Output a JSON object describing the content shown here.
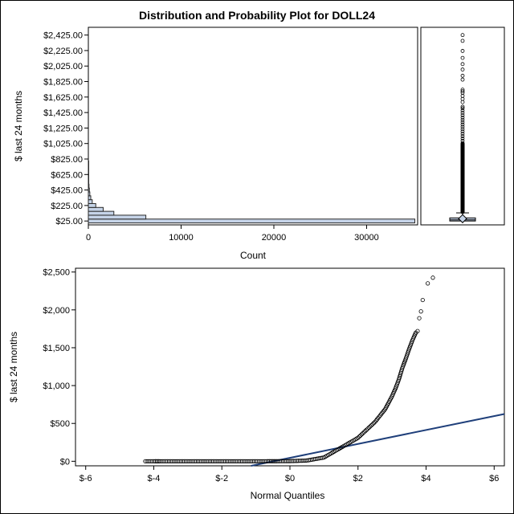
{
  "title": "Distribution and Probability Plot for DOLL24",
  "chart_data": [
    {
      "type": "bar",
      "orientation": "horizontal",
      "title": "Distribution and Probability Plot for DOLL24",
      "xlabel": "Count",
      "ylabel": "$ last 24 months",
      "xlim": [
        0,
        35500
      ],
      "ylim": [
        -25,
        2525
      ],
      "x_ticks": [
        0,
        10000,
        20000,
        30000
      ],
      "x_tick_labels": [
        "0",
        "10000",
        "20000",
        "30000"
      ],
      "y_tick_labels": [
        "$25.00",
        "$225.00",
        "$425.00",
        "$625.00",
        "$825.00",
        "$1,025.00",
        "$1,225.00",
        "$1,425.00",
        "$1,625.00",
        "$1,825.00",
        "$2,025.00",
        "$2,225.00",
        "$2,425.00"
      ],
      "y_ticks": [
        25,
        225,
        425,
        625,
        825,
        1025,
        1225,
        1425,
        1625,
        1825,
        2025,
        2225,
        2425
      ],
      "categories": [
        "$25.00",
        "$75.00",
        "$125.00",
        "$175.00",
        "$225.00",
        "$275.00",
        "$325.00",
        "$375.00",
        "$425.00",
        "$475.00",
        "$525.00",
        "$575.00",
        "$625.00",
        "$675.00",
        "$725.00",
        "$775.00"
      ],
      "bin_centers": [
        25,
        75,
        125,
        175,
        225,
        275,
        325,
        375,
        425,
        475,
        525,
        575,
        625,
        675,
        725,
        775
      ],
      "values": [
        35200,
        6200,
        2750,
        1600,
        800,
        420,
        260,
        160,
        110,
        70,
        45,
        30,
        20,
        14,
        9,
        6
      ],
      "bar_color": "#c6d4e8",
      "outline_color": "#2a2a2a",
      "grid": false
    },
    {
      "type": "boxplot",
      "ylim": [
        -25,
        2525
      ],
      "q1": 25,
      "median": 40,
      "q3": 65,
      "mean": 55,
      "whisker_low": 0,
      "whisker_high": 130,
      "outliers": [
        2425,
        2350,
        2220,
        2130,
        2050,
        1980,
        1900,
        1850,
        1720,
        1700,
        1680,
        1640,
        1600,
        1560,
        1500,
        1480,
        1450,
        1420,
        1390,
        1360,
        1330,
        1300,
        1270,
        1240,
        1210,
        1180,
        1150,
        1120,
        1090,
        1060,
        1030
      ],
      "outlier_dense_range": [
        140,
        1020
      ],
      "box_color": "#c6d4e8"
    },
    {
      "type": "scatter",
      "xlabel": "Normal Quantiles",
      "ylabel": "$ last 24 months",
      "xlim": [
        -6.3,
        6.3
      ],
      "ylim": [
        -60,
        2550
      ],
      "x_ticks": [
        -6,
        -4,
        -2,
        0,
        2,
        4,
        6
      ],
      "x_tick_labels": [
        "$-6",
        "$-4",
        "$-2",
        "$0",
        "$2",
        "$4",
        "$6"
      ],
      "y_ticks": [
        0,
        500,
        1000,
        1500,
        2000,
        2500
      ],
      "y_tick_labels": [
        "$0",
        "$500",
        "$1,000",
        "$1,500",
        "$2,000",
        "$2,500"
      ],
      "x_range": [
        -4.2,
        4.2
      ],
      "dense_curve": [
        [
          -4.2,
          0
        ],
        [
          -3.9,
          0
        ],
        [
          -3.0,
          0
        ],
        [
          -2.0,
          0
        ],
        [
          -1.0,
          0
        ],
        [
          0.0,
          2
        ],
        [
          0.5,
          10
        ],
        [
          1.0,
          50
        ],
        [
          1.5,
          180
        ],
        [
          2.0,
          310
        ],
        [
          2.5,
          520
        ],
        [
          2.8,
          690
        ],
        [
          3.0,
          860
        ],
        [
          3.1,
          960
        ],
        [
          3.2,
          1080
        ],
        [
          3.3,
          1230
        ],
        [
          3.4,
          1350
        ],
        [
          3.5,
          1480
        ],
        [
          3.6,
          1600
        ],
        [
          3.7,
          1700
        ]
      ],
      "outer_points": [
        [
          -4.25,
          0
        ],
        [
          -3.95,
          0
        ],
        [
          -3.9,
          0
        ],
        [
          -3.85,
          0
        ],
        [
          3.75,
          1720
        ],
        [
          3.8,
          1890
        ],
        [
          3.85,
          1980
        ],
        [
          3.9,
          2130
        ],
        [
          4.05,
          2350
        ],
        [
          4.2,
          2425
        ]
      ],
      "reference_line": {
        "intercept": 45,
        "slope": 92
      },
      "line_color": "#1f3f7a",
      "grid": false
    }
  ]
}
